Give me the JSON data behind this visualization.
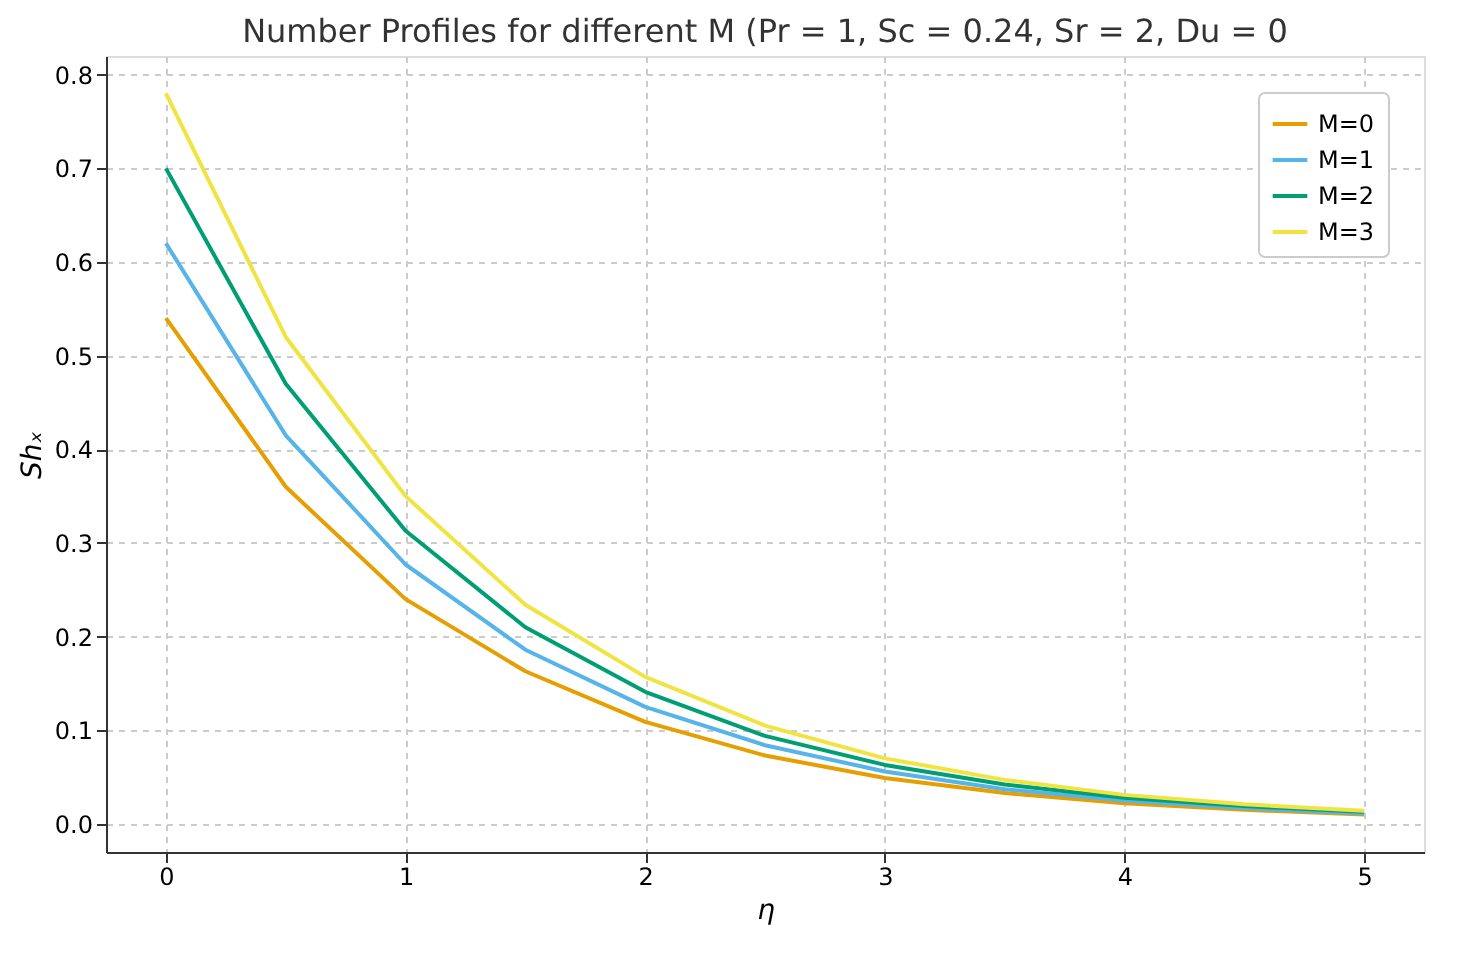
{
  "chart_data": {
    "type": "line",
    "title": "Number Profiles for different M (Pr = 1, Sc = 0.24, Sr = 2, Du = 0",
    "xlabel": "η",
    "ylabel": "Shₓ",
    "x": [
      0,
      0.5,
      1,
      1.5,
      2,
      2.5,
      3,
      3.5,
      4,
      4.5,
      5
    ],
    "series": [
      {
        "name": "M=0",
        "color": "#e69f00",
        "values": [
          0.54,
          0.36,
          0.24,
          0.163,
          0.109,
          0.073,
          0.049,
          0.033,
          0.022,
          0.015,
          0.01
        ]
      },
      {
        "name": "M=1",
        "color": "#56b4e9",
        "values": [
          0.62,
          0.415,
          0.277,
          0.186,
          0.125,
          0.084,
          0.056,
          0.037,
          0.025,
          0.017,
          0.011
        ]
      },
      {
        "name": "M=2",
        "color": "#009e73",
        "values": [
          0.7,
          0.47,
          0.313,
          0.21,
          0.141,
          0.094,
          0.063,
          0.042,
          0.028,
          0.019,
          0.013
        ]
      },
      {
        "name": "M=3",
        "color": "#f0e442",
        "values": [
          0.78,
          0.52,
          0.35,
          0.234,
          0.157,
          0.105,
          0.07,
          0.047,
          0.031,
          0.021,
          0.014
        ]
      }
    ],
    "xlim": [
      -0.25,
      5.25
    ],
    "xticks": [
      0,
      1,
      2,
      3,
      4,
      5
    ],
    "ylim": [
      -0.03,
      0.82
    ],
    "yticks": [
      {
        "value": 0,
        "label": "0.0"
      },
      0.1,
      0.2,
      0.3,
      0.4,
      0.5,
      0.6,
      0.7,
      0.8
    ],
    "grid": true,
    "legend": "top right",
    "marker": "none",
    "line_style": "solid"
  }
}
